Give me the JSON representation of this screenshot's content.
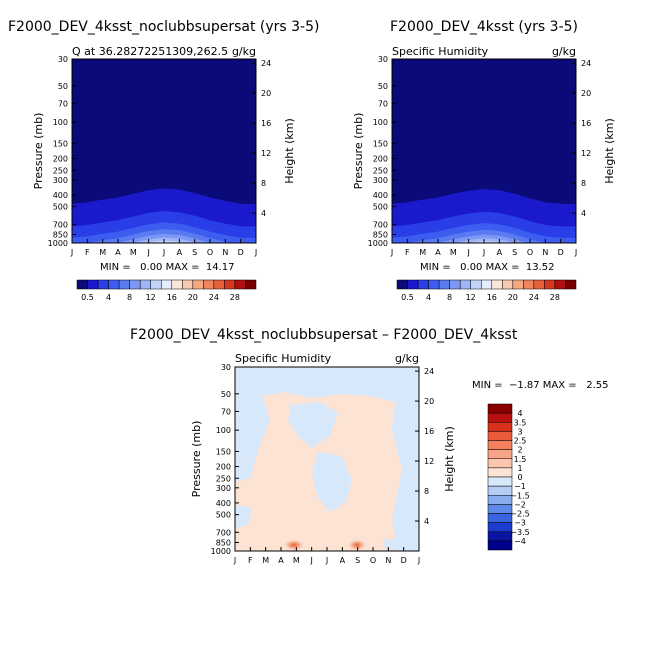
{
  "panel_a": {
    "title": "F2000_DEV_4ksst_noclubbsupersat (yrs 3-5)",
    "subtitle_left": "Q at 36.28272251309,262.5",
    "subtitle_right": "g/kg",
    "stats": "MIN =   0.00 MAX =  14.17"
  },
  "panel_b": {
    "title": "F2000_DEV_4ksst (yrs 3-5)",
    "subtitle_left": "Specific Humidity",
    "subtitle_right": "g/kg",
    "stats": "MIN =   0.00 MAX =  13.52"
  },
  "panel_c": {
    "title": "F2000_DEV_4ksst_noclubbsupersat – F2000_DEV_4ksst",
    "subtitle_left": "Specific Humidity",
    "subtitle_right": "g/kg",
    "stats": "MIN =  −1.87 MAX =   2.55"
  },
  "axes": {
    "ylabel_left": "Pressure (mb)",
    "ylabel_right": "Height (km)",
    "pressure_ticks": [
      "30",
      "50",
      "70",
      "100",
      "150",
      "200",
      "250",
      "300",
      "400",
      "500",
      "700",
      "850",
      "1000"
    ],
    "pressure_values": [
      30,
      50,
      70,
      100,
      150,
      200,
      250,
      300,
      400,
      500,
      700,
      850,
      1000
    ],
    "height_ticks": [
      "24",
      "20",
      "16",
      "12",
      "8",
      "4"
    ],
    "height_values": [
      24,
      20,
      16,
      12,
      8,
      4
    ],
    "month_ticks": [
      "J",
      "F",
      "M",
      "A",
      "M",
      "J",
      "J",
      "A",
      "S",
      "O",
      "N",
      "D",
      "J"
    ]
  },
  "colorbar_abs": {
    "labels": [
      "0.5",
      "4",
      "8",
      "12",
      "16",
      "20",
      "24",
      "28"
    ],
    "colors": [
      "#0a0a78",
      "#1a1acc",
      "#2a3ee8",
      "#3d5cf0",
      "#5a7af2",
      "#7c98f4",
      "#a0b6f6",
      "#c4d4f8",
      "#e6eefc",
      "#fbe6dc",
      "#f8c8b0",
      "#f4a884",
      "#ef8660",
      "#e8603c",
      "#d43a22",
      "#b01010",
      "#780000"
    ]
  },
  "colorbar_diff": {
    "labels": [
      "4",
      "3.5",
      "3",
      "2.5",
      "2",
      "1.5",
      "1",
      "0",
      "−1",
      "−1.5",
      "−2",
      "−2.5",
      "−3",
      "−3.5",
      "−4"
    ],
    "colors": [
      "#8a0000",
      "#b81010",
      "#d8301c",
      "#ec5a3c",
      "#f48060",
      "#f8a488",
      "#fbc6ae",
      "#fde3d4",
      "#d8e8fb",
      "#b4cdf6",
      "#8aadf0",
      "#5f89ea",
      "#3a63e0",
      "#1c3ccf",
      "#0a14a0",
      "#00008a"
    ]
  },
  "chart_data": [
    {
      "type": "heatmap",
      "title": "F2000_DEV_4ksst_noclubbsupersat (yrs 3-5)",
      "subtitle": "Q at 36.28272251309,262.5",
      "units": "g/kg",
      "xlabel": "",
      "ylabel": "Pressure (mb)",
      "ylabel_right": "Height (km)",
      "x": [
        "J",
        "F",
        "M",
        "A",
        "M",
        "J",
        "J",
        "A",
        "S",
        "O",
        "N",
        "D",
        "J"
      ],
      "ylim": [
        1000,
        30
      ],
      "min": 0.0,
      "max": 14.17,
      "surface_q_by_month": [
        5.5,
        6,
        7,
        8,
        10,
        12.5,
        14,
        13,
        10.5,
        8,
        6.5,
        5.5,
        5.5
      ]
    },
    {
      "type": "heatmap",
      "title": "F2000_DEV_4ksst (yrs 3-5)",
      "subtitle": "Specific Humidity",
      "units": "g/kg",
      "xlabel": "",
      "ylabel": "Pressure (mb)",
      "ylabel_right": "Height (km)",
      "x": [
        "J",
        "F",
        "M",
        "A",
        "M",
        "J",
        "J",
        "A",
        "S",
        "O",
        "N",
        "D",
        "J"
      ],
      "ylim": [
        1000,
        30
      ],
      "min": 0.0,
      "max": 13.52,
      "surface_q_by_month": [
        5.5,
        6,
        7,
        8,
        10,
        12,
        13.5,
        12.5,
        10,
        7.5,
        6,
        5.5,
        5.5
      ]
    },
    {
      "type": "heatmap",
      "title": "F2000_DEV_4ksst_noclubbsupersat – F2000_DEV_4ksst",
      "subtitle": "Specific Humidity",
      "units": "g/kg",
      "xlabel": "",
      "ylabel": "Pressure (mb)",
      "ylabel_right": "Height (km)",
      "x": [
        "J",
        "F",
        "M",
        "A",
        "M",
        "J",
        "J",
        "A",
        "S",
        "O",
        "N",
        "D",
        "J"
      ],
      "ylim": [
        1000,
        30
      ],
      "min": -1.87,
      "max": 2.55
    }
  ]
}
